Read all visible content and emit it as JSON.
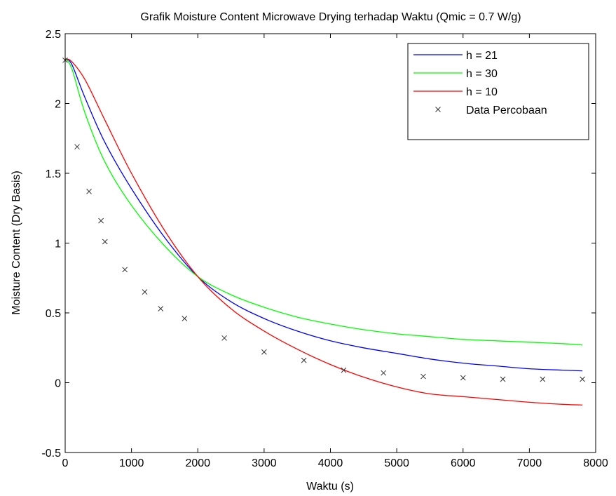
{
  "chart_data": {
    "type": "line",
    "title": "Grafik Moisture Content Microwave Drying terhadap Waktu (Qmic = 0.7 W/g)",
    "xlabel": "Waktu (s)",
    "ylabel": "Moisture Content (Dry Basis)",
    "xlim": [
      0,
      8000
    ],
    "ylim": [
      -0.5,
      2.5
    ],
    "xticks": [
      "0",
      "1000",
      "2000",
      "3000",
      "4000",
      "5000",
      "6000",
      "7000",
      "8000"
    ],
    "yticks": [
      "-0.5",
      "0",
      "0.5",
      "1",
      "1.5",
      "2",
      "2.5"
    ],
    "grid": false,
    "legend_position": "top-right",
    "series": [
      {
        "name": "h = 21",
        "color": "#0000ff",
        "marker": "line",
        "x": [
          0,
          100,
          300,
          600,
          1000,
          1500,
          2000,
          2500,
          3000,
          3500,
          4000,
          4500,
          5000,
          5500,
          6000,
          6500,
          7000,
          7500,
          7800
        ],
        "y": [
          2.32,
          2.28,
          2.04,
          1.72,
          1.39,
          1.04,
          0.76,
          0.58,
          0.46,
          0.37,
          0.3,
          0.25,
          0.21,
          0.17,
          0.14,
          0.12,
          0.1,
          0.09,
          0.085
        ]
      },
      {
        "name": "h = 30",
        "color": "#00ff00",
        "marker": "line",
        "x": [
          0,
          100,
          300,
          600,
          1000,
          1500,
          2000,
          2500,
          3000,
          3500,
          4000,
          4500,
          5000,
          5500,
          6000,
          6500,
          7000,
          7500,
          7800
        ],
        "y": [
          2.32,
          2.25,
          1.93,
          1.58,
          1.27,
          0.98,
          0.76,
          0.63,
          0.54,
          0.47,
          0.42,
          0.38,
          0.35,
          0.33,
          0.31,
          0.3,
          0.29,
          0.28,
          0.27
        ]
      },
      {
        "name": "h = 10",
        "color": "#ff0000",
        "marker": "line",
        "x": [
          0,
          100,
          300,
          600,
          1000,
          1500,
          2000,
          2500,
          3000,
          3500,
          4000,
          4500,
          5000,
          5500,
          6000,
          6500,
          7000,
          7500,
          7800
        ],
        "y": [
          2.32,
          2.3,
          2.17,
          1.88,
          1.5,
          1.09,
          0.76,
          0.53,
          0.37,
          0.24,
          0.13,
          0.04,
          -0.03,
          -0.08,
          -0.1,
          -0.12,
          -0.14,
          -0.155,
          -0.16
        ]
      },
      {
        "name": "Data Percobaan",
        "color": "#333333",
        "marker": "x",
        "x": [
          0,
          180,
          360,
          540,
          600,
          900,
          1200,
          1440,
          1800,
          2400,
          3000,
          3600,
          4200,
          4800,
          5400,
          6000,
          6600,
          7200,
          7800
        ],
        "y": [
          2.31,
          1.69,
          1.37,
          1.16,
          1.01,
          0.81,
          0.65,
          0.53,
          0.46,
          0.32,
          0.22,
          0.16,
          0.09,
          0.07,
          0.045,
          0.035,
          0.025,
          0.025,
          0.025
        ]
      }
    ]
  }
}
